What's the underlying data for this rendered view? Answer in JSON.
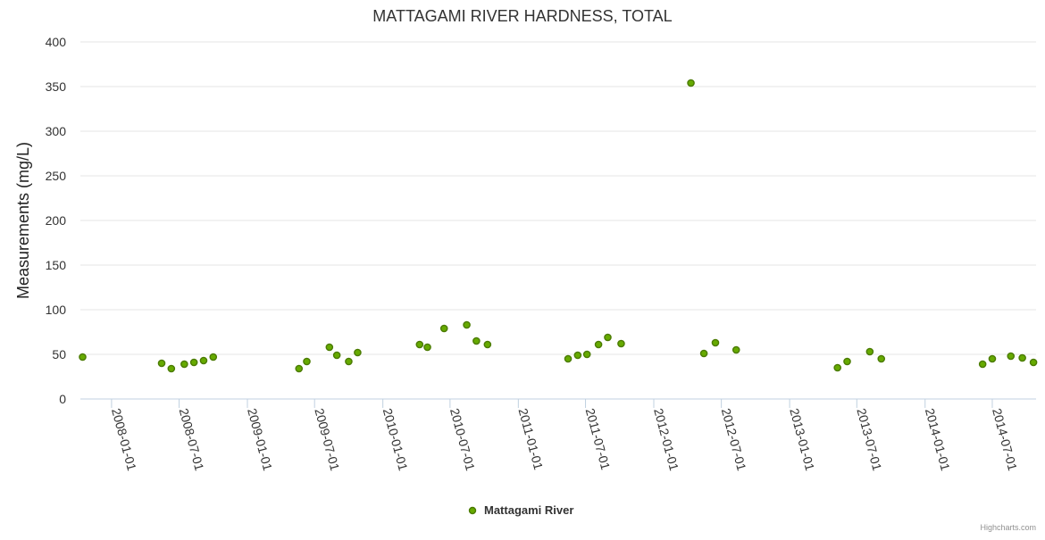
{
  "chart_data": {
    "type": "scatter",
    "title": "MATTAGAMI RIVER HARDNESS, TOTAL",
    "xlabel": "",
    "ylabel": "Measurements (mg/L)",
    "ylim": [
      0,
      400
    ],
    "yticks": [
      0,
      50,
      100,
      150,
      200,
      250,
      300,
      350,
      400
    ],
    "xlim": [
      "2007-10-09",
      "2014-10-27"
    ],
    "xticks": [
      "2008-01-01",
      "2008-07-01",
      "2009-01-01",
      "2009-07-01",
      "2010-01-01",
      "2010-07-01",
      "2011-01-01",
      "2011-07-01",
      "2012-01-01",
      "2012-07-01",
      "2013-01-01",
      "2013-07-01",
      "2014-01-01",
      "2014-07-01"
    ],
    "grid": true,
    "legend_position": "bottom-center",
    "series": [
      {
        "name": "Mattagami River",
        "color": "#66aa00",
        "marker_edge": "#4a7a00",
        "points": [
          {
            "x": "2007-10-15",
            "y": 47
          },
          {
            "x": "2008-05-15",
            "y": 40
          },
          {
            "x": "2008-06-10",
            "y": 34
          },
          {
            "x": "2008-07-15",
            "y": 39
          },
          {
            "x": "2008-08-10",
            "y": 41
          },
          {
            "x": "2008-09-05",
            "y": 43
          },
          {
            "x": "2008-10-01",
            "y": 47
          },
          {
            "x": "2009-05-20",
            "y": 34
          },
          {
            "x": "2009-06-10",
            "y": 42
          },
          {
            "x": "2009-08-10",
            "y": 58
          },
          {
            "x": "2009-08-30",
            "y": 49
          },
          {
            "x": "2009-10-01",
            "y": 42
          },
          {
            "x": "2009-10-25",
            "y": 52
          },
          {
            "x": "2010-04-10",
            "y": 61
          },
          {
            "x": "2010-05-01",
            "y": 58
          },
          {
            "x": "2010-06-15",
            "y": 79
          },
          {
            "x": "2010-08-15",
            "y": 83
          },
          {
            "x": "2010-09-10",
            "y": 65
          },
          {
            "x": "2010-10-10",
            "y": 61
          },
          {
            "x": "2011-05-15",
            "y": 45
          },
          {
            "x": "2011-06-10",
            "y": 49
          },
          {
            "x": "2011-07-05",
            "y": 50
          },
          {
            "x": "2011-08-05",
            "y": 61
          },
          {
            "x": "2011-08-30",
            "y": 69
          },
          {
            "x": "2011-10-05",
            "y": 62
          },
          {
            "x": "2012-04-10",
            "y": 354
          },
          {
            "x": "2012-05-15",
            "y": 51
          },
          {
            "x": "2012-06-15",
            "y": 63
          },
          {
            "x": "2012-08-10",
            "y": 55
          },
          {
            "x": "2013-05-10",
            "y": 35
          },
          {
            "x": "2013-06-05",
            "y": 42
          },
          {
            "x": "2013-08-05",
            "y": 53
          },
          {
            "x": "2013-09-05",
            "y": 45
          },
          {
            "x": "2014-06-05",
            "y": 39
          },
          {
            "x": "2014-07-01",
            "y": 45
          },
          {
            "x": "2014-08-20",
            "y": 48
          },
          {
            "x": "2014-09-20",
            "y": 46
          },
          {
            "x": "2014-10-20",
            "y": 41
          }
        ]
      }
    ]
  },
  "credits": "Highcharts.com"
}
